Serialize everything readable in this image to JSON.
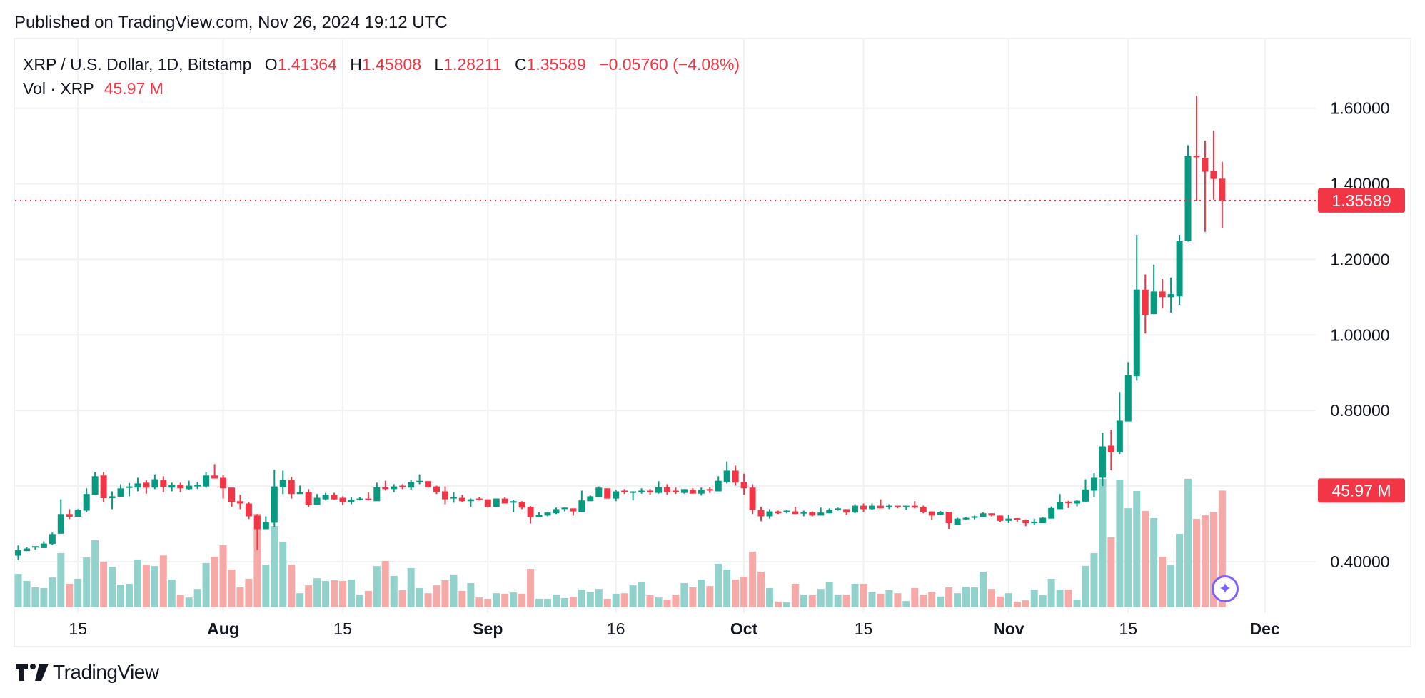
{
  "header": {
    "published": "Published on TradingView.com, Nov 26, 2024 19:12 UTC"
  },
  "legend": {
    "symbol": "XRP / U.S. Dollar, 1D, Bitstamp",
    "o_label": "O",
    "o": "1.41364",
    "h_label": "H",
    "h": "1.45808",
    "l_label": "L",
    "l": "1.28211",
    "c_label": "C",
    "c": "1.35589",
    "change": "−0.05760 (−4.08%)",
    "vol_label": "Vol · XRP",
    "vol": "45.97 M"
  },
  "logo": {
    "text": "TradingView"
  },
  "colors": {
    "up": "#089981",
    "down": "#f23645",
    "vol_up": "#92d2cc",
    "vol_down": "#f7a9a7",
    "assistant": "#7b61ff"
  },
  "icons": {
    "assistant_button": "sparkle-icon",
    "logo": "tradingview-logo-icon"
  },
  "chart_data": {
    "type": "candlestick",
    "symbol": "XRP / U.S. Dollar",
    "interval": "1D",
    "exchange": "Bitstamp",
    "ylim": [
      0.34,
      1.72
    ],
    "price_ticks": [
      "0.40000",
      "0.80000",
      "1.00000",
      "1.20000",
      "1.40000",
      "1.60000"
    ],
    "grid_prices": [
      0.4,
      0.6,
      0.8,
      1.0,
      1.2,
      1.4,
      1.6
    ],
    "last_price_label": "1.35589",
    "last_price": 1.35589,
    "last_volume_label": "45.97 M",
    "time_ticks": [
      {
        "label": "15",
        "date": "2024-07-15",
        "bold": false
      },
      {
        "label": "Aug",
        "date": "2024-08-01",
        "bold": true
      },
      {
        "label": "15",
        "date": "2024-08-15",
        "bold": false
      },
      {
        "label": "Sep",
        "date": "2024-09-01",
        "bold": true
      },
      {
        "label": "16",
        "date": "2024-09-16",
        "bold": false
      },
      {
        "label": "Oct",
        "date": "2024-10-01",
        "bold": true
      },
      {
        "label": "15",
        "date": "2024-10-15",
        "bold": false
      },
      {
        "label": "Nov",
        "date": "2024-11-01",
        "bold": true
      },
      {
        "label": "15",
        "date": "2024-11-15",
        "bold": false
      },
      {
        "label": "Dec",
        "date": "2024-12-01",
        "bold": true
      }
    ],
    "grid": true,
    "columns": [
      "date",
      "open",
      "high",
      "low",
      "close",
      "volume_M"
    ],
    "candles": [
      [
        "2024-07-08",
        0.416,
        0.443,
        0.404,
        0.431,
        13.1
      ],
      [
        "2024-07-09",
        0.428,
        0.438,
        0.428,
        0.435,
        10.3
      ],
      [
        "2024-07-10",
        0.438,
        0.441,
        0.432,
        0.441,
        7.8
      ],
      [
        "2024-07-11",
        0.436,
        0.454,
        0.436,
        0.448,
        7.5
      ],
      [
        "2024-07-12",
        0.447,
        0.477,
        0.445,
        0.473,
        11.7
      ],
      [
        "2024-07-13",
        0.474,
        0.565,
        0.474,
        0.526,
        21.3
      ],
      [
        "2024-07-14",
        0.526,
        0.539,
        0.513,
        0.519,
        9.2
      ],
      [
        "2024-07-15",
        0.519,
        0.539,
        0.519,
        0.537,
        11.2
      ],
      [
        "2024-07-16",
        0.535,
        0.594,
        0.531,
        0.579,
        19.6
      ],
      [
        "2024-07-17",
        0.577,
        0.637,
        0.577,
        0.626,
        26.4
      ],
      [
        "2024-07-18",
        0.628,
        0.637,
        0.558,
        0.568,
        17.9
      ],
      [
        "2024-07-19",
        0.568,
        0.586,
        0.539,
        0.573,
        15.9
      ],
      [
        "2024-07-20",
        0.572,
        0.605,
        0.572,
        0.594,
        8.9
      ],
      [
        "2024-07-21",
        0.596,
        0.608,
        0.573,
        0.599,
        9.2
      ],
      [
        "2024-07-22",
        0.596,
        0.622,
        0.586,
        0.607,
        18.8
      ],
      [
        "2024-07-23",
        0.609,
        0.616,
        0.58,
        0.596,
        16.5
      ],
      [
        "2024-07-24",
        0.596,
        0.631,
        0.592,
        0.618,
        16.2
      ],
      [
        "2024-07-25",
        0.616,
        0.626,
        0.584,
        0.598,
        20.4
      ],
      [
        "2024-07-26",
        0.596,
        0.609,
        0.586,
        0.603,
        10.9
      ],
      [
        "2024-07-27",
        0.603,
        0.609,
        0.584,
        0.594,
        4.7
      ],
      [
        "2024-07-28",
        0.592,
        0.614,
        0.59,
        0.601,
        3.8
      ],
      [
        "2024-07-29",
        0.599,
        0.611,
        0.592,
        0.603,
        7.2
      ],
      [
        "2024-07-30",
        0.599,
        0.637,
        0.596,
        0.628,
        17.4
      ],
      [
        "2024-07-31",
        0.628,
        0.658,
        0.62,
        0.62,
        19.9
      ],
      [
        "2024-08-01",
        0.622,
        0.63,
        0.567,
        0.594,
        24.4
      ],
      [
        "2024-08-02",
        0.596,
        0.596,
        0.545,
        0.558,
        14.8
      ],
      [
        "2024-08-03",
        0.56,
        0.577,
        0.539,
        0.554,
        7.8
      ],
      [
        "2024-08-04",
        0.554,
        0.558,
        0.513,
        0.52,
        11.2
      ],
      [
        "2024-08-05",
        0.522,
        0.526,
        0.431,
        0.486,
        36.8
      ],
      [
        "2024-08-06",
        0.486,
        0.52,
        0.486,
        0.505,
        16.8
      ],
      [
        "2024-08-07",
        0.503,
        0.643,
        0.492,
        0.599,
        32.0
      ],
      [
        "2024-08-08",
        0.597,
        0.641,
        0.579,
        0.616,
        25.8
      ],
      [
        "2024-08-09",
        0.616,
        0.624,
        0.567,
        0.579,
        16.8
      ],
      [
        "2024-08-10",
        0.579,
        0.601,
        0.579,
        0.584,
        5.5
      ],
      [
        "2024-08-11",
        0.584,
        0.592,
        0.545,
        0.55,
        8.6
      ],
      [
        "2024-08-12",
        0.55,
        0.579,
        0.55,
        0.569,
        11.4
      ],
      [
        "2024-08-13",
        0.565,
        0.582,
        0.562,
        0.577,
        10.3
      ],
      [
        "2024-08-14",
        0.577,
        0.582,
        0.564,
        0.565,
        10.6
      ],
      [
        "2024-08-15",
        0.569,
        0.573,
        0.55,
        0.558,
        10.3
      ],
      [
        "2024-08-16",
        0.558,
        0.571,
        0.552,
        0.564,
        10.9
      ],
      [
        "2024-08-17",
        0.564,
        0.571,
        0.562,
        0.567,
        5.0
      ],
      [
        "2024-08-18",
        0.567,
        0.584,
        0.562,
        0.564,
        6.4
      ],
      [
        "2024-08-19",
        0.56,
        0.609,
        0.56,
        0.597,
        16.2
      ],
      [
        "2024-08-20",
        0.597,
        0.614,
        0.588,
        0.592,
        18.2
      ],
      [
        "2024-08-21",
        0.592,
        0.605,
        0.584,
        0.599,
        12.3
      ],
      [
        "2024-08-22",
        0.601,
        0.605,
        0.592,
        0.597,
        6.7
      ],
      [
        "2024-08-23",
        0.596,
        0.616,
        0.59,
        0.611,
        15.4
      ],
      [
        "2024-08-24",
        0.611,
        0.631,
        0.605,
        0.614,
        7.5
      ],
      [
        "2024-08-25",
        0.613,
        0.613,
        0.596,
        0.597,
        5.5
      ],
      [
        "2024-08-26",
        0.599,
        0.601,
        0.579,
        0.584,
        8.6
      ],
      [
        "2024-08-27",
        0.586,
        0.599,
        0.552,
        0.565,
        10.6
      ],
      [
        "2024-08-28",
        0.567,
        0.584,
        0.556,
        0.571,
        12.9
      ],
      [
        "2024-08-29",
        0.569,
        0.577,
        0.558,
        0.56,
        6.4
      ],
      [
        "2024-08-30",
        0.56,
        0.567,
        0.545,
        0.565,
        9.5
      ],
      [
        "2024-08-31",
        0.567,
        0.571,
        0.562,
        0.564,
        3.8
      ],
      [
        "2024-09-01",
        0.565,
        0.565,
        0.543,
        0.545,
        3.3
      ],
      [
        "2024-09-02",
        0.545,
        0.567,
        0.545,
        0.567,
        5.5
      ],
      [
        "2024-09-03",
        0.567,
        0.571,
        0.554,
        0.554,
        5.3
      ],
      [
        "2024-09-04",
        0.556,
        0.564,
        0.531,
        0.56,
        5.8
      ],
      [
        "2024-09-05",
        0.558,
        0.56,
        0.539,
        0.543,
        5.3
      ],
      [
        "2024-09-06",
        0.545,
        0.547,
        0.501,
        0.518,
        15.1
      ],
      [
        "2024-09-07",
        0.518,
        0.531,
        0.518,
        0.524,
        3.3
      ],
      [
        "2024-09-08",
        0.522,
        0.531,
        0.52,
        0.53,
        3.3
      ],
      [
        "2024-09-09",
        0.528,
        0.543,
        0.526,
        0.539,
        5.0
      ],
      [
        "2024-09-10",
        0.539,
        0.543,
        0.533,
        0.543,
        3.6
      ],
      [
        "2024-09-11",
        0.541,
        0.541,
        0.522,
        0.533,
        4.1
      ],
      [
        "2024-09-12",
        0.531,
        0.588,
        0.531,
        0.562,
        6.9
      ],
      [
        "2024-09-13",
        0.56,
        0.575,
        0.56,
        0.573,
        6.1
      ],
      [
        "2024-09-14",
        0.571,
        0.599,
        0.571,
        0.596,
        7.2
      ],
      [
        "2024-09-15",
        0.594,
        0.594,
        0.567,
        0.567,
        3.3
      ],
      [
        "2024-09-16",
        0.567,
        0.59,
        0.56,
        0.586,
        5.3
      ],
      [
        "2024-09-17",
        0.588,
        0.592,
        0.579,
        0.584,
        5.5
      ],
      [
        "2024-09-18",
        0.582,
        0.586,
        0.562,
        0.586,
        8.6
      ],
      [
        "2024-09-19",
        0.584,
        0.594,
        0.58,
        0.588,
        9.8
      ],
      [
        "2024-09-20",
        0.588,
        0.592,
        0.577,
        0.584,
        4.7
      ],
      [
        "2024-09-21",
        0.582,
        0.613,
        0.58,
        0.597,
        3.8
      ],
      [
        "2024-09-22",
        0.597,
        0.605,
        0.577,
        0.584,
        3.0
      ],
      [
        "2024-09-23",
        0.588,
        0.596,
        0.579,
        0.584,
        5.0
      ],
      [
        "2024-09-24",
        0.582,
        0.592,
        0.58,
        0.592,
        9.5
      ],
      [
        "2024-09-25",
        0.59,
        0.594,
        0.58,
        0.58,
        7.8
      ],
      [
        "2024-09-26",
        0.58,
        0.596,
        0.575,
        0.59,
        10.9
      ],
      [
        "2024-09-27",
        0.592,
        0.597,
        0.582,
        0.588,
        8.3
      ],
      [
        "2024-09-28",
        0.586,
        0.626,
        0.586,
        0.614,
        17.1
      ],
      [
        "2024-09-29",
        0.611,
        0.665,
        0.607,
        0.641,
        14.8
      ],
      [
        "2024-09-30",
        0.641,
        0.654,
        0.601,
        0.609,
        10.9
      ],
      [
        "2024-10-01",
        0.611,
        0.633,
        0.577,
        0.594,
        12.0
      ],
      [
        "2024-10-02",
        0.596,
        0.605,
        0.526,
        0.537,
        21.9
      ],
      [
        "2024-10-03",
        0.537,
        0.545,
        0.507,
        0.52,
        14.0
      ],
      [
        "2024-10-04",
        0.52,
        0.539,
        0.514,
        0.533,
        7.5
      ],
      [
        "2024-10-05",
        0.533,
        0.535,
        0.526,
        0.528,
        2.2
      ],
      [
        "2024-10-06",
        0.531,
        0.537,
        0.528,
        0.535,
        1.9
      ],
      [
        "2024-10-07",
        0.533,
        0.545,
        0.526,
        0.526,
        9.2
      ],
      [
        "2024-10-08",
        0.528,
        0.535,
        0.52,
        0.531,
        5.0
      ],
      [
        "2024-10-09",
        0.531,
        0.533,
        0.52,
        0.522,
        4.7
      ],
      [
        "2024-10-10",
        0.522,
        0.543,
        0.522,
        0.53,
        7.2
      ],
      [
        "2024-10-11",
        0.528,
        0.541,
        0.528,
        0.537,
        9.8
      ],
      [
        "2024-10-12",
        0.537,
        0.543,
        0.535,
        0.541,
        5.0
      ],
      [
        "2024-10-13",
        0.539,
        0.539,
        0.524,
        0.53,
        5.0
      ],
      [
        "2024-10-14",
        0.53,
        0.552,
        0.528,
        0.548,
        9.2
      ],
      [
        "2024-10-15",
        0.548,
        0.554,
        0.531,
        0.539,
        9.2
      ],
      [
        "2024-10-16",
        0.539,
        0.554,
        0.537,
        0.548,
        6.1
      ],
      [
        "2024-10-17",
        0.548,
        0.565,
        0.541,
        0.541,
        5.3
      ],
      [
        "2024-10-18",
        0.545,
        0.552,
        0.539,
        0.548,
        6.7
      ],
      [
        "2024-10-19",
        0.548,
        0.548,
        0.541,
        0.545,
        5.5
      ],
      [
        "2024-10-20",
        0.545,
        0.548,
        0.537,
        0.548,
        2.4
      ],
      [
        "2024-10-21",
        0.548,
        0.56,
        0.541,
        0.543,
        7.5
      ],
      [
        "2024-10-22",
        0.545,
        0.548,
        0.528,
        0.531,
        5.0
      ],
      [
        "2024-10-23",
        0.533,
        0.533,
        0.511,
        0.522,
        6.1
      ],
      [
        "2024-10-24",
        0.524,
        0.534,
        0.524,
        0.532,
        4.2
      ],
      [
        "2024-10-25",
        0.532,
        0.532,
        0.487,
        0.502,
        7.8
      ],
      [
        "2024-10-26",
        0.498,
        0.516,
        0.498,
        0.514,
        5.5
      ],
      [
        "2024-10-27",
        0.512,
        0.518,
        0.51,
        0.516,
        8.0
      ],
      [
        "2024-10-28",
        0.516,
        0.522,
        0.512,
        0.52,
        7.8
      ],
      [
        "2024-10-29",
        0.518,
        0.53,
        0.518,
        0.528,
        14.0
      ],
      [
        "2024-10-30",
        0.528,
        0.528,
        0.52,
        0.522,
        7.2
      ],
      [
        "2024-10-31",
        0.522,
        0.522,
        0.504,
        0.508,
        4.2
      ],
      [
        "2024-11-01",
        0.508,
        0.524,
        0.502,
        0.514,
        5.5
      ],
      [
        "2024-11-02",
        0.515,
        0.515,
        0.506,
        0.512,
        2.2
      ],
      [
        "2024-11-03",
        0.51,
        0.512,
        0.494,
        0.502,
        2.7
      ],
      [
        "2024-11-04",
        0.502,
        0.514,
        0.498,
        0.506,
        6.9
      ],
      [
        "2024-11-05",
        0.502,
        0.518,
        0.502,
        0.516,
        4.7
      ],
      [
        "2024-11-06",
        0.514,
        0.546,
        0.514,
        0.542,
        11.2
      ],
      [
        "2024-11-07",
        0.539,
        0.579,
        0.539,
        0.557,
        6.9
      ],
      [
        "2024-11-08",
        0.559,
        0.561,
        0.542,
        0.555,
        6.9
      ],
      [
        "2024-11-09",
        0.554,
        0.563,
        0.546,
        0.561,
        3.0
      ],
      [
        "2024-11-10",
        0.559,
        0.618,
        0.557,
        0.591,
        16.3
      ],
      [
        "2024-11-11",
        0.588,
        0.634,
        0.571,
        0.622,
        21.3
      ],
      [
        "2024-11-12",
        0.622,
        0.741,
        0.6,
        0.705,
        50.6
      ],
      [
        "2024-11-13",
        0.707,
        0.749,
        0.642,
        0.689,
        27.5
      ],
      [
        "2024-11-14",
        0.689,
        0.849,
        0.685,
        0.773,
        50.3
      ],
      [
        "2024-11-15",
        0.771,
        0.928,
        0.771,
        0.894,
        39.0
      ],
      [
        "2024-11-16",
        0.891,
        1.265,
        0.879,
        1.12,
        45.8
      ],
      [
        "2024-11-17",
        1.12,
        1.16,
        1.004,
        1.053,
        37.9
      ],
      [
        "2024-11-18",
        1.055,
        1.186,
        1.055,
        1.115,
        35.1
      ],
      [
        "2024-11-19",
        1.115,
        1.148,
        1.07,
        1.1,
        19.9
      ],
      [
        "2024-11-20",
        1.1,
        1.152,
        1.059,
        1.108,
        16.5
      ],
      [
        "2024-11-21",
        1.102,
        1.265,
        1.08,
        1.248,
        28.9
      ],
      [
        "2024-11-22",
        1.248,
        1.502,
        1.247,
        1.474,
        50.6
      ],
      [
        "2024-11-23",
        1.474,
        1.633,
        1.354,
        1.47,
        34.8
      ],
      [
        "2024-11-24",
        1.469,
        1.514,
        1.273,
        1.432,
        36.2
      ],
      [
        "2024-11-25",
        1.435,
        1.541,
        1.358,
        1.413,
        37.6
      ],
      [
        "2024-11-26",
        1.41364,
        1.45808,
        1.28211,
        1.35589,
        45.97
      ]
    ]
  }
}
